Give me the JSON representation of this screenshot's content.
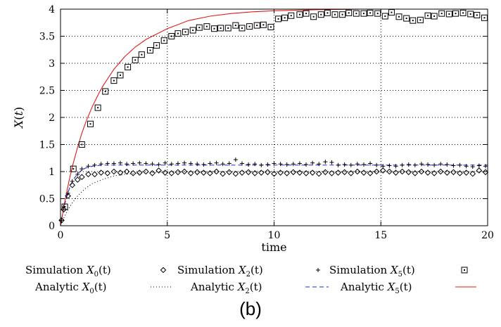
{
  "chart_data": {
    "type": "scatter",
    "title": "",
    "xlabel": "time",
    "ylabel": "X(t)",
    "xlim": [
      0,
      20
    ],
    "ylim": [
      0,
      4
    ],
    "xticks": [
      "0",
      "5",
      "10",
      "15",
      "20"
    ],
    "yticks": [
      "0",
      "0.5",
      "1",
      "1.5",
      "2",
      "2.5",
      "3",
      "3.5",
      "4"
    ],
    "grid": true,
    "legend_position": "bottom",
    "panel_label": "(b)",
    "series": [
      {
        "name": "Simulation X0(t)",
        "legend_prefix": "Simulation",
        "legend_var": "X",
        "legend_sub": "0",
        "legend_arg": "(t)",
        "kind": "markers",
        "marker": "diamond",
        "x": [
          0.05,
          0.15,
          0.35,
          0.55,
          0.8,
          1.0,
          1.3,
          1.6,
          1.9,
          2.2,
          2.5,
          2.8,
          3.1,
          3.4,
          3.7,
          4.0,
          4.3,
          4.6,
          4.9,
          5.2,
          5.5,
          5.8,
          6.1,
          6.4,
          6.7,
          7.0,
          7.3,
          7.6,
          7.9,
          8.2,
          8.5,
          8.8,
          9.1,
          9.4,
          9.7,
          10.0,
          10.3,
          10.6,
          10.9,
          11.2,
          11.5,
          11.8,
          12.1,
          12.4,
          12.7,
          13.0,
          13.3,
          13.6,
          13.9,
          14.2,
          14.5,
          14.8,
          15.1,
          15.4,
          15.7,
          16.0,
          16.3,
          16.6,
          16.9,
          17.2,
          17.5,
          17.8,
          18.1,
          18.4,
          18.7,
          19.0,
          19.3,
          19.6,
          19.9
        ],
        "y": [
          0.1,
          0.3,
          0.55,
          0.75,
          0.85,
          0.9,
          0.95,
          0.95,
          0.98,
          0.97,
          1.0,
          0.98,
          1.0,
          0.97,
          0.98,
          1.0,
          0.97,
          1.02,
          0.98,
          0.97,
          0.99,
          1.0,
          0.97,
          0.99,
          0.98,
          0.97,
          1.0,
          0.96,
          0.99,
          0.96,
          0.98,
          0.99,
          0.97,
          0.98,
          0.99,
          0.96,
          0.98,
          0.97,
          0.99,
          0.98,
          0.97,
          0.98,
          0.96,
          0.99,
          0.97,
          0.98,
          0.99,
          0.97,
          1.0,
          0.98,
          0.97,
          1.0,
          1.02,
          1.0,
          0.98,
          1.0,
          0.99,
          0.97,
          1.0,
          0.98,
          0.97,
          1.0,
          0.98,
          0.99,
          0.97,
          0.98,
          0.96,
          1.02,
          0.99
        ]
      },
      {
        "name": "Simulation X2(t)",
        "legend_prefix": "Simulation",
        "legend_var": "X",
        "legend_sub": "2",
        "legend_arg": "(t)",
        "kind": "markers",
        "marker": "plus",
        "x": [
          0.05,
          0.15,
          0.35,
          0.55,
          0.8,
          1.0,
          1.3,
          1.6,
          1.9,
          2.2,
          2.5,
          2.8,
          3.1,
          3.4,
          3.7,
          4.0,
          4.3,
          4.6,
          4.9,
          5.2,
          5.5,
          5.8,
          6.1,
          6.4,
          6.7,
          7.0,
          7.3,
          7.6,
          7.9,
          8.2,
          8.5,
          8.8,
          9.1,
          9.4,
          9.7,
          10.0,
          10.3,
          10.6,
          10.9,
          11.2,
          11.5,
          11.8,
          12.1,
          12.4,
          12.7,
          13.0,
          13.3,
          13.6,
          13.9,
          14.2,
          14.5,
          14.8,
          15.1,
          15.4,
          15.7,
          16.0,
          16.3,
          16.6,
          16.9,
          17.2,
          17.5,
          17.8,
          18.1,
          18.4,
          18.7,
          19.0,
          19.3,
          19.6,
          19.9
        ],
        "y": [
          0.1,
          0.35,
          0.6,
          0.82,
          0.95,
          1.05,
          1.1,
          1.12,
          1.14,
          1.15,
          1.15,
          1.16,
          1.14,
          1.15,
          1.16,
          1.15,
          1.14,
          1.13,
          1.16,
          1.14,
          1.15,
          1.16,
          1.15,
          1.14,
          1.13,
          1.15,
          1.16,
          1.14,
          1.15,
          1.22,
          1.15,
          1.13,
          1.14,
          1.12,
          1.13,
          1.15,
          1.14,
          1.13,
          1.14,
          1.15,
          1.13,
          1.16,
          1.14,
          1.18,
          1.17,
          1.12,
          1.13,
          1.12,
          1.14,
          1.13,
          1.15,
          1.12,
          1.1,
          1.11,
          1.1,
          1.12,
          1.13,
          1.12,
          1.14,
          1.13,
          1.12,
          1.14,
          1.13,
          1.11,
          1.12,
          1.1,
          1.09,
          1.11,
          1.1
        ]
      },
      {
        "name": "Simulation X5(t)",
        "legend_prefix": "Simulation",
        "legend_var": "X",
        "legend_sub": "5",
        "legend_arg": "(t)",
        "kind": "markers",
        "marker": "square",
        "x": [
          0.2,
          0.6,
          1.0,
          1.4,
          1.75,
          2.1,
          2.5,
          2.8,
          3.15,
          3.5,
          3.8,
          4.2,
          4.5,
          4.85,
          5.2,
          5.5,
          5.85,
          6.2,
          6.5,
          6.85,
          7.2,
          7.5,
          7.85,
          8.2,
          8.5,
          8.85,
          9.2,
          9.5,
          9.85,
          10.2,
          10.5,
          10.8,
          11.2,
          11.5,
          11.85,
          12.2,
          12.5,
          12.85,
          13.2,
          13.5,
          13.85,
          14.2,
          14.5,
          14.85,
          15.2,
          15.5,
          15.85,
          16.2,
          16.5,
          16.85,
          17.2,
          17.5,
          17.85,
          18.2,
          18.5,
          18.85,
          19.2,
          19.5,
          19.85
        ],
        "y": [
          0.35,
          1.05,
          1.5,
          1.88,
          2.18,
          2.48,
          2.68,
          2.78,
          2.93,
          3.06,
          3.16,
          3.24,
          3.33,
          3.42,
          3.5,
          3.55,
          3.58,
          3.61,
          3.66,
          3.68,
          3.64,
          3.65,
          3.65,
          3.7,
          3.65,
          3.68,
          3.7,
          3.71,
          3.67,
          3.82,
          3.84,
          3.88,
          3.9,
          3.92,
          3.86,
          3.9,
          3.93,
          3.9,
          3.9,
          3.93,
          3.92,
          3.92,
          3.93,
          3.92,
          3.87,
          3.94,
          3.86,
          3.83,
          3.79,
          3.8,
          3.88,
          3.87,
          3.92,
          3.91,
          3.92,
          3.93,
          3.91,
          3.89,
          3.84
        ]
      },
      {
        "name": "Analytic X0(t)",
        "legend_prefix": "Analytic",
        "legend_var": "X",
        "legend_sub": "0",
        "legend_arg": "(t)",
        "kind": "line",
        "line_style": "dotted",
        "color": "#000000",
        "x": [
          0,
          0.1,
          0.2,
          0.3,
          0.4,
          0.5,
          0.6,
          0.8,
          1.0,
          1.2,
          1.5,
          2.0,
          2.5,
          3,
          4,
          5,
          6,
          8,
          10,
          12,
          14,
          16,
          18,
          20
        ],
        "y": [
          0,
          0.1,
          0.18,
          0.26,
          0.33,
          0.39,
          0.45,
          0.55,
          0.63,
          0.7,
          0.78,
          0.86,
          0.92,
          0.95,
          0.98,
          0.99,
          1.0,
          1.0,
          1.0,
          1.0,
          1.0,
          1.0,
          1.0,
          1.0
        ]
      },
      {
        "name": "Analytic X2(t)",
        "legend_prefix": "Analytic",
        "legend_var": "X",
        "legend_sub": "2",
        "legend_arg": "(t)",
        "kind": "line",
        "line_style": "dashed",
        "color": "#1f2bd8",
        "x": [
          0,
          0.1,
          0.2,
          0.3,
          0.4,
          0.5,
          0.6,
          0.8,
          1.0,
          1.2,
          1.5,
          2.0,
          2.5,
          3,
          4,
          5,
          6,
          8,
          10,
          12,
          14,
          16,
          18,
          20
        ],
        "y": [
          0,
          0.22,
          0.4,
          0.55,
          0.67,
          0.77,
          0.85,
          0.96,
          1.03,
          1.07,
          1.1,
          1.12,
          1.12,
          1.12,
          1.12,
          1.12,
          1.12,
          1.12,
          1.12,
          1.12,
          1.12,
          1.12,
          1.12,
          1.12
        ]
      },
      {
        "name": "Analytic X5(t)",
        "legend_prefix": "Analytic",
        "legend_var": "X",
        "legend_sub": "5",
        "legend_arg": "(t)",
        "kind": "line",
        "line_style": "solid",
        "color": "#e01b1b",
        "x": [
          0,
          0.1,
          0.2,
          0.3,
          0.4,
          0.5,
          0.6,
          0.8,
          1.0,
          1.2,
          1.5,
          1.8,
          2.0,
          2.5,
          3,
          3.5,
          4,
          5,
          6,
          7,
          8,
          9,
          10,
          11,
          12,
          14,
          16,
          18,
          20
        ],
        "y": [
          0,
          0.22,
          0.44,
          0.64,
          0.83,
          1.0,
          1.16,
          1.45,
          1.71,
          1.93,
          2.21,
          2.45,
          2.59,
          2.89,
          3.12,
          3.3,
          3.44,
          3.64,
          3.79,
          3.87,
          3.92,
          3.95,
          3.97,
          3.98,
          3.99,
          4.0,
          4.0,
          4.0,
          4.0
        ]
      }
    ]
  }
}
